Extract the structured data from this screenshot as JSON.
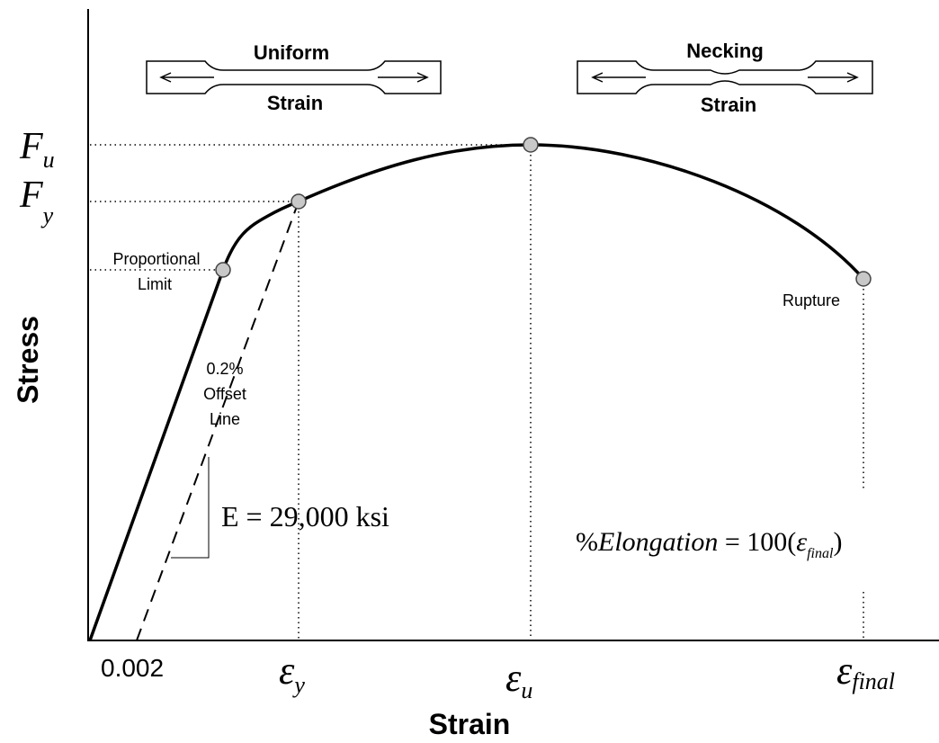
{
  "specimens": [
    {
      "top": "Uniform",
      "bottom": "Strain"
    },
    {
      "top": "Necking",
      "bottom": "Strain"
    }
  ],
  "stress_levels": [
    {
      "symbol": "F",
      "subscript": "u"
    },
    {
      "symbol": "F",
      "subscript": "y"
    }
  ],
  "points": {
    "proportional": [
      "Proportional",
      "Limit"
    ],
    "rupture": "Rupture"
  },
  "offset_line": [
    "0.2%",
    "Offset",
    "Line"
  ],
  "modulus": "E = 29,000 ksi",
  "elongation": {
    "lhs": "%",
    "var": "Elongation",
    "eq": " = 100(",
    "sym": "ε",
    "sub": "final",
    "close": ")"
  },
  "strain_marks": {
    "offset": "0.002",
    "levels": [
      {
        "symbol": "ε",
        "subscript": "y"
      },
      {
        "symbol": "ε",
        "subscript": "u"
      },
      {
        "symbol": "ε",
        "subscript": "final"
      }
    ]
  },
  "axes": {
    "x_label": "Strain",
    "y_label": "Stress"
  }
}
